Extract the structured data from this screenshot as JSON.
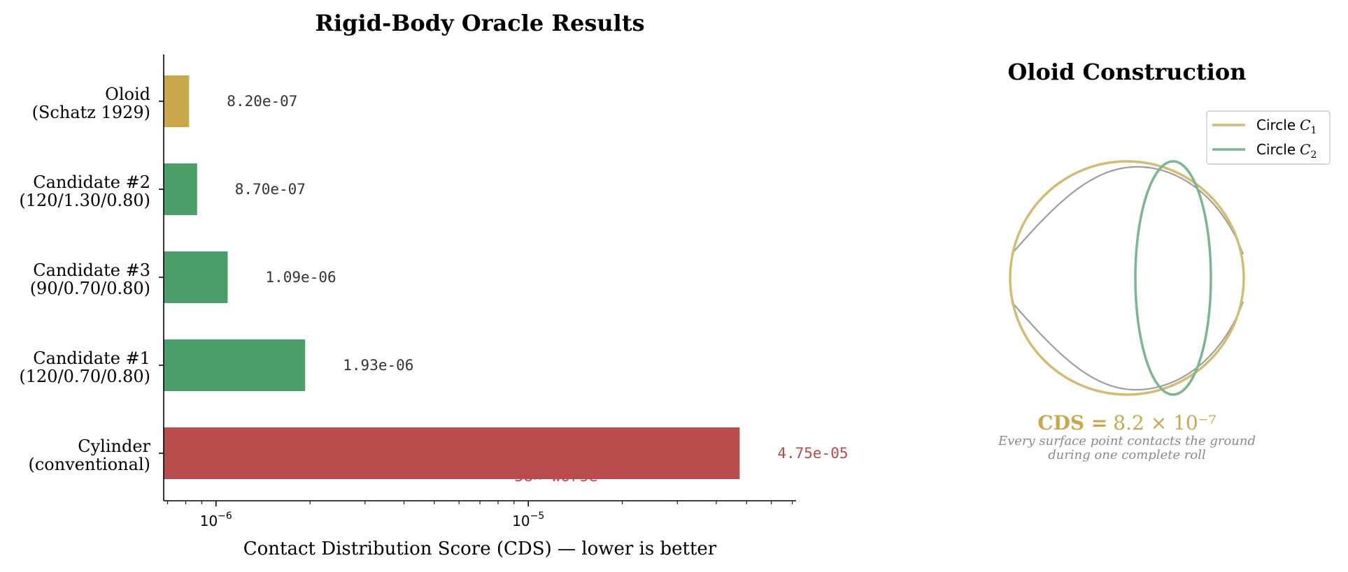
{
  "chart_data": [
    {
      "type": "bar",
      "orientation": "horizontal",
      "title": "Rigid-Body Oracle Results",
      "xlabel": "Contact Distribution Score (CDS) — lower is better",
      "ylabel": "",
      "xscale": "log",
      "xlim": [
        6.8e-07,
        7.2e-05
      ],
      "xticks": [
        {
          "value": 1e-06,
          "base": "10",
          "exp": "−6"
        },
        {
          "value": 1e-05,
          "base": "10",
          "exp": "−5"
        }
      ],
      "grid": false,
      "categories": [
        {
          "line1": "Oloid",
          "line2": "(Schatz 1929)"
        },
        {
          "line1": "Candidate #2",
          "line2": "(120/1.30/0.80)"
        },
        {
          "line1": "Candidate #3",
          "line2": "(90/0.70/0.80)"
        },
        {
          "line1": "Candidate #1",
          "line2": "(120/0.70/0.80)"
        },
        {
          "line1": "Cylinder",
          "line2": "(conventional)"
        }
      ],
      "values": [
        8.2e-07,
        8.7e-07,
        1.09e-06,
        1.93e-06,
        4.75e-05
      ],
      "labels": [
        "8.20e-07",
        "8.70e-07",
        "1.09e-06",
        "1.93e-06",
        "4.75e-05"
      ],
      "colors": [
        "#c9a84a",
        "#4a9e68",
        "#4a9e68",
        "#4a9e68",
        "#b84b4b"
      ],
      "label_colors": [
        "#333333",
        "#333333",
        "#333333",
        "#333333",
        "#b84b4b"
      ],
      "annotation": {
        "text": "58× worse",
        "color": "#c94040"
      }
    },
    {
      "type": "diagram",
      "title": "Oloid Construction",
      "legend": {
        "placement": "top-right",
        "entries": [
          {
            "name": "Circle",
            "sub": "1",
            "color": "#d4bb72"
          },
          {
            "name": "Circle",
            "sub": "2",
            "color": "#7ab68e"
          }
        ]
      },
      "cds_value": "8.2 × 10⁻⁷",
      "cds_label": "CDS =",
      "caption_line1": "Every surface point contacts the ground",
      "caption_line2": "during one complete roll",
      "colors": {
        "c1": "#d4bb72",
        "c2": "#7ab68e",
        "hull": "#9e9e9e",
        "accent": "#c9a84a",
        "caption": "#8a8a8a"
      }
    }
  ]
}
